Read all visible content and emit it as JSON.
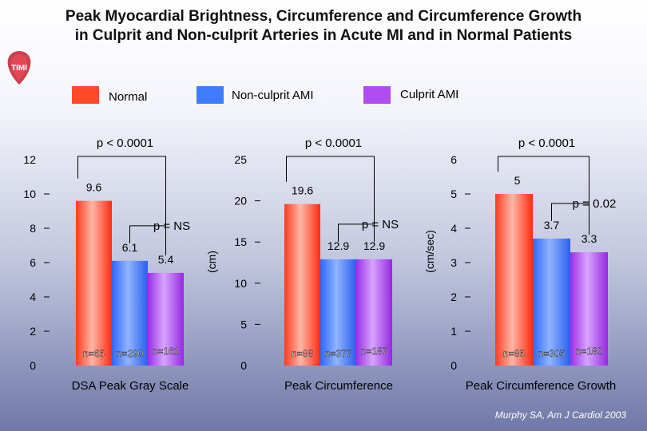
{
  "title": {
    "line1": "Peak Myocardial Brightness, Circumference and Circumference Growth",
    "line2": "in Culprit and Non-culprit Arteries in Acute MI and in Normal Patients"
  },
  "logo": {
    "text": "TIMI"
  },
  "legend": [
    {
      "label": "Normal",
      "color": "#ff4a2a"
    },
    {
      "label": "Non-culprit AMI",
      "color": "#3f7cff"
    },
    {
      "label": "Culprit AMI",
      "color": "#b04cf0"
    }
  ],
  "citation": "Murphy SA, Am J Cardiol 2003",
  "chart_data": [
    {
      "type": "bar",
      "xlabel": "DSA Peak Gray Scale",
      "ylabel": "",
      "ylim": [
        0,
        12
      ],
      "yticks": [
        "0",
        "2",
        "4",
        "6",
        "8",
        "10",
        "12"
      ],
      "categories": [
        "Normal",
        "Non-culprit AMI",
        "Culprit AMI"
      ],
      "values": [
        9.6,
        6.1,
        5.4
      ],
      "value_labels": [
        "9.6",
        "6.1",
        "5.4"
      ],
      "n_labels": [
        "n=65",
        "n=290",
        "n=161"
      ],
      "annotations": [
        {
          "text": "p < 0.0001",
          "between": [
            "Normal",
            "Culprit AMI"
          ]
        },
        {
          "text": "p = NS",
          "between": [
            "Non-culprit AMI",
            "Culprit AMI"
          ]
        }
      ]
    },
    {
      "type": "bar",
      "xlabel": "Peak Circumference",
      "ylabel": "(cm)",
      "ylim": [
        0,
        25
      ],
      "yticks": [
        "0",
        "5",
        "10",
        "15",
        "20",
        "25"
      ],
      "categories": [
        "Normal",
        "Non-culprit AMI",
        "Culprit AMI"
      ],
      "values": [
        19.6,
        12.9,
        12.9
      ],
      "value_labels": [
        "19.6",
        "12.9",
        "12.9"
      ],
      "n_labels": [
        "n=88",
        "n=377",
        "n=187"
      ],
      "annotations": [
        {
          "text": "p < 0.0001",
          "between": [
            "Normal",
            "Culprit AMI"
          ]
        },
        {
          "text": "p = NS",
          "between": [
            "Non-culprit AMI",
            "Culprit AMI"
          ]
        }
      ]
    },
    {
      "type": "bar",
      "xlabel": "Peak Circumference Growth",
      "ylabel": "(cm/sec)",
      "ylim": [
        0,
        6
      ],
      "yticks": [
        "0",
        "1",
        "2",
        "3",
        "4",
        "5",
        "6"
      ],
      "categories": [
        "Normal",
        "Non-culprit AMI",
        "Culprit AMI"
      ],
      "values": [
        5.0,
        3.7,
        3.3
      ],
      "value_labels": [
        "5",
        "3.7",
        "3.3"
      ],
      "n_labels": [
        "n=85",
        "n=305",
        "n=182"
      ],
      "annotations": [
        {
          "text": "p < 0.0001",
          "between": [
            "Normal",
            "Culprit AMI"
          ]
        },
        {
          "text": "p = 0.02",
          "between": [
            "Non-culprit AMI",
            "Culprit AMI"
          ]
        }
      ]
    }
  ]
}
